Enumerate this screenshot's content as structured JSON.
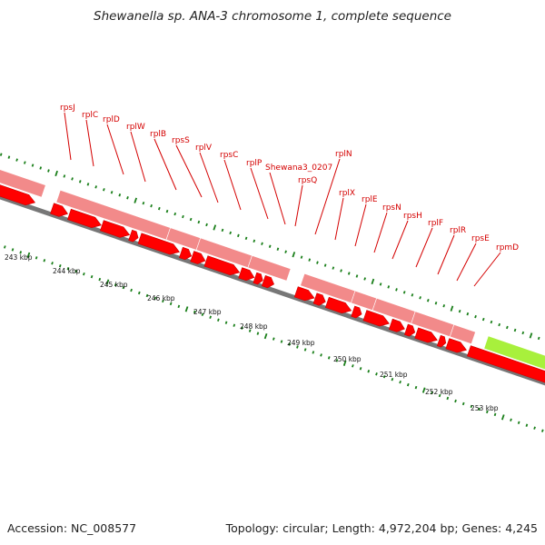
{
  "title": "Shewanella sp. ANA-3 chromosome 1, complete sequence",
  "footer": {
    "accession": "Accession: NC_008577",
    "topology": "Topology: circular; Length: 4,972,204 bp; Genes: 4,245"
  },
  "colors": {
    "cds": "#ff0000",
    "cds_dark": "#c80000",
    "cds_track": "#f28a8a",
    "rna_track": "#a8f03c",
    "backbone": "#777777",
    "ticks": "#1a7f1a",
    "labels": "#d40000"
  },
  "gene_labels": [
    "rpsJ",
    "rplC",
    "rplD",
    "rplW",
    "rplB",
    "rpsS",
    "rplV",
    "rpsC",
    "rplP",
    "Shewana3_0207",
    "rpsQ",
    "rplN",
    "rplX",
    "rplE",
    "rpsN",
    "rpsH",
    "rplF",
    "rplR",
    "rpsE",
    "rpmD"
  ],
  "scale_labels": [
    "243 kbp",
    "244 kbp",
    "245 kbp",
    "246 kbp",
    "247 kbp",
    "248 kbp",
    "249 kbp",
    "250 kbp",
    "251 kbp",
    "252 kbp",
    "253 kbp"
  ]
}
